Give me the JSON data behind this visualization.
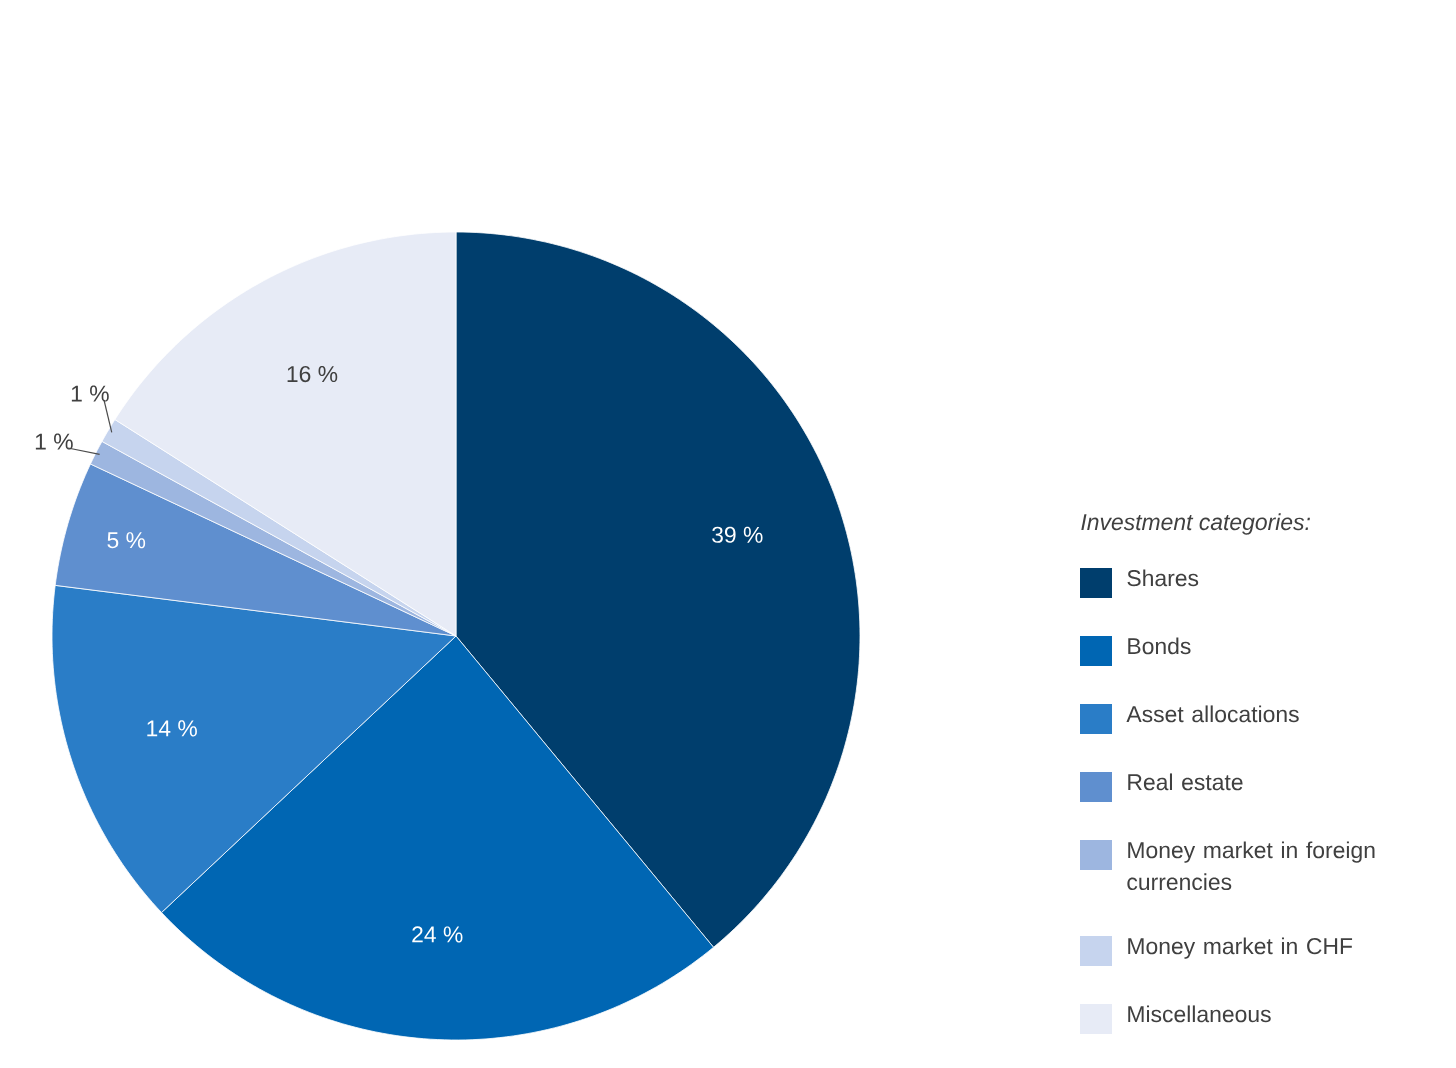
{
  "chart_data": {
    "type": "pie",
    "legend_title": "Investment categories:",
    "legend": "right",
    "categories": [
      "Shares",
      "Bonds",
      "Asset allocations",
      "Real estate",
      "Money market in foreign currencies",
      "Money market in CHF",
      "Miscellaneous"
    ],
    "values": [
      39,
      24,
      14,
      5,
      1,
      1,
      16
    ],
    "value_labels": [
      "39 %",
      "24 %",
      "14 %",
      "5 %",
      "1 %",
      "1 %",
      "16 %"
    ],
    "colors": [
      "#003e6d",
      "#0066b3",
      "#2a7dc7",
      "#5f8fcf",
      "#9db6e0",
      "#c6d4ee",
      "#e7ebf6"
    ]
  }
}
